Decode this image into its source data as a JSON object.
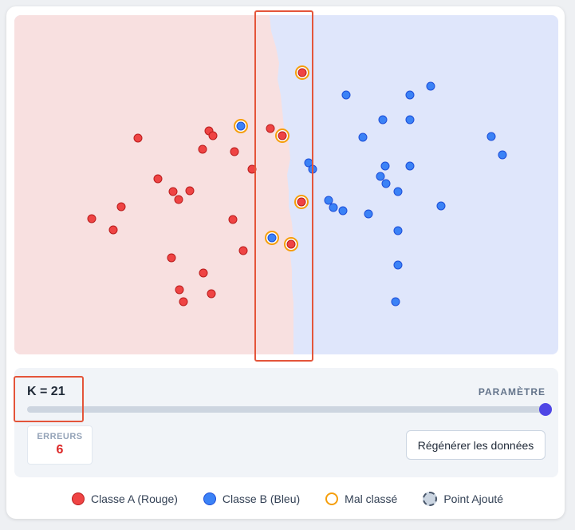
{
  "k_label": "K = 21",
  "parameter_label": "PARAMÈTRE",
  "slider": {
    "value": 21,
    "fraction": 1.0
  },
  "errors": {
    "title": "ERREURS",
    "value": "6"
  },
  "regenerate_label": "Régénérer les données",
  "legend": [
    {
      "label": "Classe A (Rouge)",
      "icon": "red-dot-icon"
    },
    {
      "label": "Classe B (Bleu)",
      "icon": "blue-dot-icon"
    },
    {
      "label": "Mal classé",
      "icon": "orange-ring-icon"
    },
    {
      "label": "Point Ajouté",
      "icon": "dashed-circle-icon"
    }
  ],
  "colors": {
    "class_a": "#ef4444",
    "class_b": "#3b82f6",
    "misclassified": "#f59e0b",
    "region_a": "#f8e0e0",
    "region_b": "#dfe6fb",
    "highlight": "#e4553a",
    "slider_thumb": "#4f46e5",
    "error_value": "#dc2626"
  },
  "chart_data": {
    "type": "scatter",
    "title": "",
    "xlabel": "",
    "ylabel": "",
    "xlim": [
      0,
      682
    ],
    "ylim": [
      0,
      425
    ],
    "grid": false,
    "boundary": [
      [
        0,
        320
      ],
      [
        20,
        322
      ],
      [
        40,
        328
      ],
      [
        60,
        332
      ],
      [
        80,
        330
      ],
      [
        100,
        334
      ],
      [
        120,
        336
      ],
      [
        140,
        338
      ],
      [
        160,
        344
      ],
      [
        180,
        346
      ],
      [
        200,
        342
      ],
      [
        220,
        344
      ],
      [
        240,
        344
      ],
      [
        260,
        348
      ],
      [
        280,
        350
      ],
      [
        300,
        346
      ],
      [
        320,
        348
      ],
      [
        340,
        348
      ],
      [
        360,
        350
      ],
      [
        380,
        350
      ],
      [
        400,
        350
      ],
      [
        425,
        350
      ]
    ],
    "series": [
      {
        "name": "Classe A (Rouge)",
        "points": [
          [
            155,
            154
          ],
          [
            244,
            145
          ],
          [
            249,
            151
          ],
          [
            236,
            168
          ],
          [
            276,
            171
          ],
          [
            298,
            193
          ],
          [
            180,
            205
          ],
          [
            199,
            221
          ],
          [
            206,
            231
          ],
          [
            220,
            220
          ],
          [
            134,
            240
          ],
          [
            97,
            255
          ],
          [
            124,
            269
          ],
          [
            274,
            256
          ],
          [
            287,
            295
          ],
          [
            197,
            304
          ],
          [
            237,
            323
          ],
          [
            207,
            344
          ],
          [
            212,
            359
          ],
          [
            247,
            349
          ],
          [
            321,
            142
          ]
        ]
      },
      {
        "name": "Classe B (Bleu)",
        "points": [
          [
            416,
            100
          ],
          [
            496,
            100
          ],
          [
            522,
            89
          ],
          [
            462,
            131
          ],
          [
            496,
            131
          ],
          [
            437,
            153
          ],
          [
            598,
            152
          ],
          [
            612,
            175
          ],
          [
            369,
            185
          ],
          [
            374,
            193
          ],
          [
            465,
            189
          ],
          [
            496,
            189
          ],
          [
            459,
            202
          ],
          [
            466,
            211
          ],
          [
            481,
            221
          ],
          [
            394,
            232
          ],
          [
            400,
            241
          ],
          [
            412,
            245
          ],
          [
            444,
            249
          ],
          [
            535,
            239
          ],
          [
            481,
            270
          ],
          [
            481,
            313
          ],
          [
            478,
            359
          ]
        ]
      },
      {
        "name": "Mal classé",
        "points": [
          {
            "x": 361,
            "y": 72,
            "cls": "A"
          },
          {
            "x": 284,
            "y": 139,
            "cls": "B"
          },
          {
            "x": 336,
            "y": 151,
            "cls": "A"
          },
          {
            "x": 360,
            "y": 234,
            "cls": "A"
          },
          {
            "x": 323,
            "y": 279,
            "cls": "B"
          },
          {
            "x": 347,
            "y": 287,
            "cls": "A"
          }
        ]
      }
    ]
  }
}
